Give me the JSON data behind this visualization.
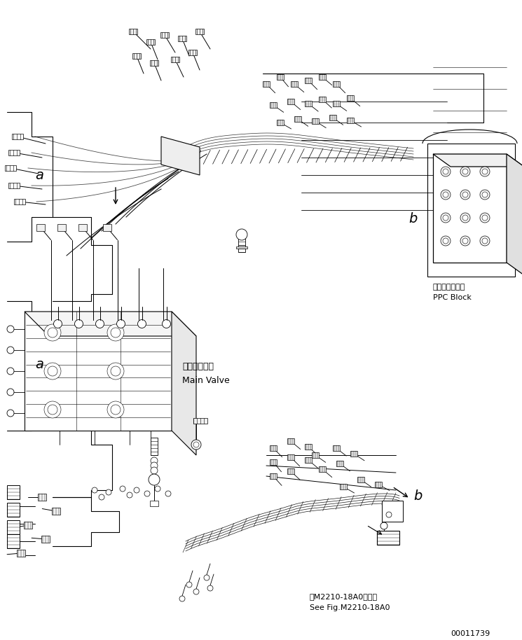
{
  "fig_width": 7.45,
  "fig_height": 9.14,
  "dpi": 100,
  "bg_color": "#ffffff",
  "line_color": "#000000",
  "labels": {
    "ppc_block_jp": "ＰＰＣブロック",
    "ppc_block_en": "PPC Block",
    "main_valve_jp": "メインバルブ",
    "main_valve_en": "Main Valve",
    "label_a1": "a",
    "label_a2": "a",
    "label_b1": "b",
    "label_b2": "b",
    "ref_jp": "第M2210-18A0図参照",
    "ref_en": "See Fig.M2210-18A0",
    "doc_num": "00011739"
  },
  "font_sizes": {
    "label": 8,
    "small": 7,
    "tiny": 6,
    "doc": 7
  }
}
